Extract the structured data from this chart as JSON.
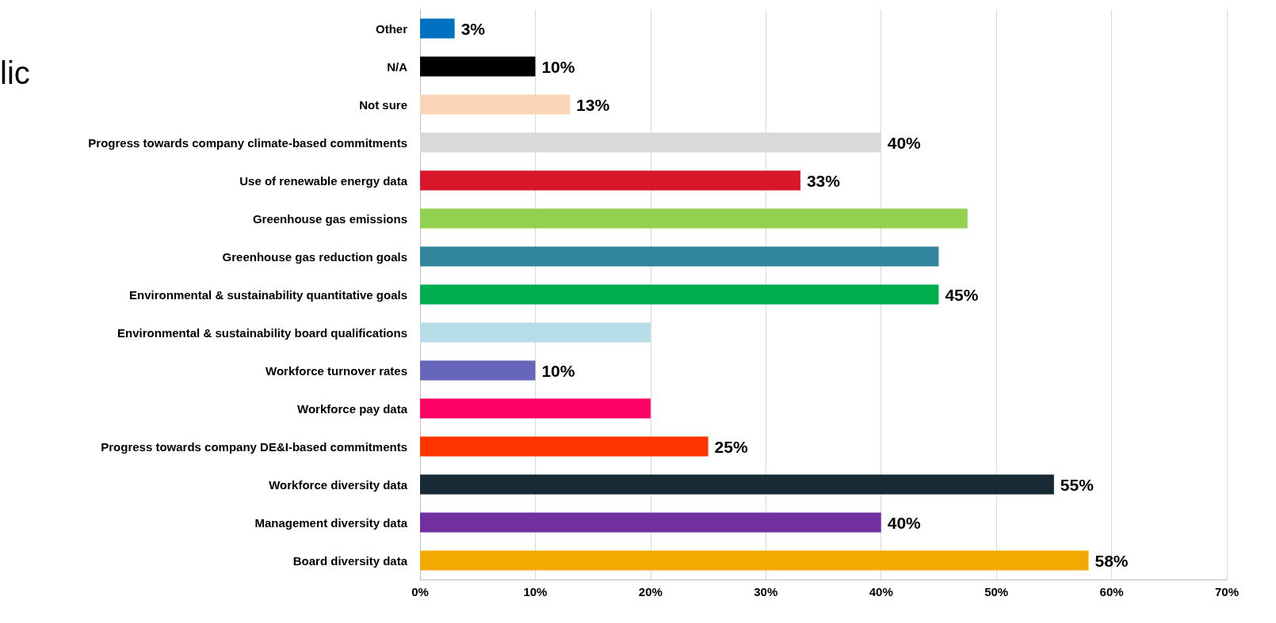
{
  "chart_data": {
    "type": "bar",
    "orientation": "horizontal",
    "categories": [
      "Other",
      "N/A",
      "Not sure",
      "Progress towards company climate-based commitments",
      "Use of renewable energy data",
      "Greenhouse gas emissions",
      "Greenhouse gas reduction goals",
      "Environmental & sustainability quantitative goals",
      "Environmental & sustainability board qualifications",
      "Workforce turnover rates",
      "Workforce pay data",
      "Progress towards company DE&I-based commitments",
      "Workforce diversity data",
      "Management diversity data",
      "Board diversity data"
    ],
    "values": [
      3,
      10,
      13,
      40,
      33,
      47.5,
      45,
      45,
      20,
      10,
      20,
      25,
      55,
      40,
      58
    ],
    "value_labels": [
      "3%",
      "10%",
      "13%",
      "40%",
      "33%",
      null,
      null,
      "45%",
      null,
      "10%",
      null,
      "25%",
      "55%",
      "40%",
      "58%"
    ],
    "colors": [
      "#0070c0",
      "#000000",
      "#fbd5b5",
      "#d9d9d9",
      "#d7182a",
      "#92d050",
      "#31859c",
      "#00b050",
      "#b7dee8",
      "#6666bb",
      "#ff0066",
      "#ff3300",
      "#172a36",
      "#7030a0",
      "#f2a900"
    ],
    "xlim": [
      0,
      70
    ],
    "xticks": [
      {
        "value": 0,
        "label": "0%"
      },
      {
        "value": 10,
        "label": "10%"
      },
      {
        "value": 20,
        "label": "20%"
      },
      {
        "value": 30,
        "label": "30%"
      },
      {
        "value": 40,
        "label": "40%"
      },
      {
        "value": 50,
        "label": "50%"
      },
      {
        "value": 60,
        "label": "60%"
      },
      {
        "value": 70,
        "label": "70%"
      }
    ],
    "grid": "x",
    "annotations": [
      "lic"
    ]
  }
}
